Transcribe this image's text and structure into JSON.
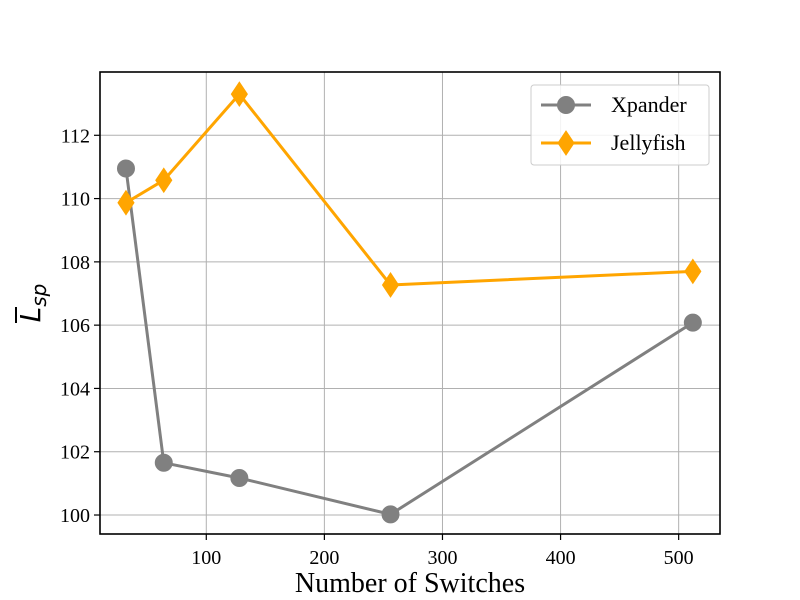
{
  "chart_data": {
    "type": "line",
    "xlabel": "Number of Switches",
    "ylabel": "L",
    "ylabel_subscript": "sp",
    "xlim": [
      10,
      535
    ],
    "ylim": [
      99.4,
      114.0
    ],
    "xticks": [
      100,
      200,
      300,
      400,
      500
    ],
    "yticks": [
      100,
      102,
      104,
      106,
      108,
      110,
      112
    ],
    "grid": true,
    "legend_position": "top-right",
    "series": [
      {
        "name": "Xpander",
        "color": "#808080",
        "marker": "circle",
        "x": [
          32,
          64,
          128,
          256,
          512
        ],
        "y": [
          110.95,
          101.65,
          101.17,
          100.02,
          106.08
        ]
      },
      {
        "name": "Jellyfish",
        "color": "#FFA500",
        "marker": "diamond",
        "x": [
          32,
          64,
          128,
          256,
          512
        ],
        "y": [
          109.87,
          110.58,
          113.3,
          107.27,
          107.7
        ]
      }
    ]
  }
}
